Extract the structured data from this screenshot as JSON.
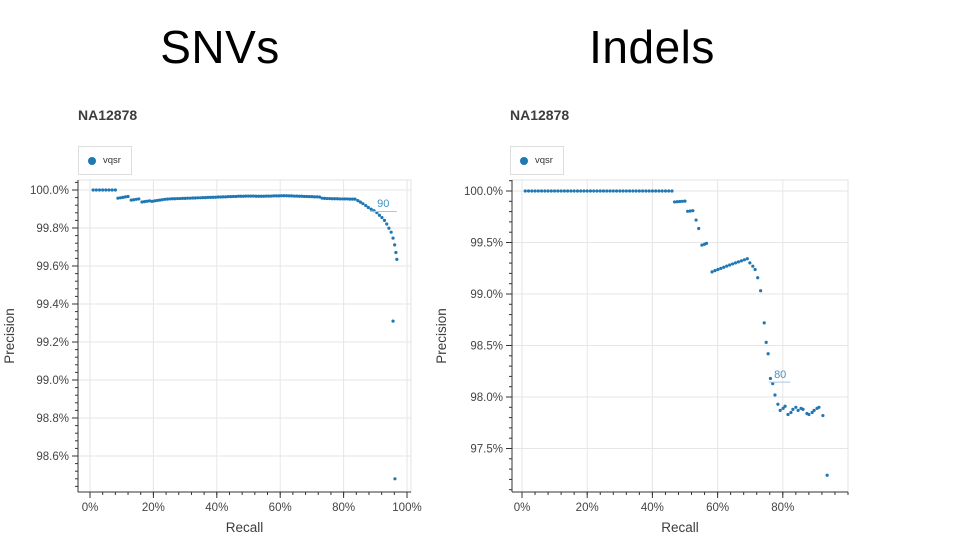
{
  "page": {
    "background": "#ffffff"
  },
  "titles": {
    "left": "SNVs",
    "right": "Indels"
  },
  "colors": {
    "dot": "#1f77b4",
    "annotation_text": "#4292c6",
    "annotation_line": "#a8c8e0",
    "grid": "#e6e6e6",
    "plot_border": "#e3e3e3",
    "axis": "#333333",
    "tick_label": "#444444",
    "axis_title": "#3d3d3d",
    "subtitle": "#3d3d3d"
  },
  "chart_data": [
    {
      "type": "scatter",
      "title": "SNVs",
      "subtitle": "NA12878",
      "legend": [
        "vqsr"
      ],
      "xlabel": "Recall",
      "ylabel": "Precision",
      "xlim": [
        0,
        101.5
      ],
      "ylim": [
        98.41,
        100.05
      ],
      "grid": true,
      "legend_position": "top-left",
      "xticks": {
        "values": [
          0,
          20,
          40,
          60,
          80,
          100
        ],
        "labels": [
          "0%",
          "20%",
          "40%",
          "60%",
          "80%",
          "100%"
        ],
        "minor_step": 4
      },
      "yticks": {
        "values": [
          98.6,
          98.8,
          99.0,
          99.2,
          99.4,
          99.6,
          99.8,
          100.0
        ],
        "labels": [
          "98.6%",
          "98.8%",
          "99.0%",
          "99.2%",
          "99.4%",
          "99.6%",
          "99.8%",
          "100.0%"
        ],
        "minor_step": 0.04
      },
      "annotation": {
        "text": "90",
        "line_y": 99.887,
        "line_x1": 88.3,
        "line_x2": 96.8,
        "text_x": 92.5,
        "text_y": 99.9
      },
      "series": [
        {
          "name": "vqsr",
          "points": [
            [
              1,
              100
            ],
            [
              2,
              100
            ],
            [
              3,
              100
            ],
            [
              4,
              100
            ],
            [
              5,
              100
            ],
            [
              6,
              100
            ],
            [
              7,
              100
            ],
            [
              8,
              100
            ],
            [
              8.8,
              99.957
            ],
            [
              9.6,
              99.959
            ],
            [
              10.4,
              99.961
            ],
            [
              11.2,
              99.964
            ],
            [
              12,
              99.966
            ],
            [
              13,
              99.947
            ],
            [
              13.8,
              99.949
            ],
            [
              14.6,
              99.951
            ],
            [
              15.4,
              99.953
            ],
            [
              16.4,
              99.937
            ],
            [
              17.2,
              99.939
            ],
            [
              18,
              99.941
            ],
            [
              18.8,
              99.943
            ],
            [
              19.6,
              99.94
            ],
            [
              20.4,
              99.943
            ],
            [
              21.2,
              99.945
            ],
            [
              22,
              99.947
            ],
            [
              22.8,
              99.949
            ],
            [
              23.6,
              99.951
            ],
            [
              24.4,
              99.952
            ],
            [
              25.2,
              99.953
            ],
            [
              26,
              99.954
            ],
            [
              26.8,
              99.954
            ],
            [
              27.6,
              99.955
            ],
            [
              28.4,
              99.955
            ],
            [
              29.2,
              99.956
            ],
            [
              30,
              99.956
            ],
            [
              30.8,
              99.957
            ],
            [
              31.6,
              99.957
            ],
            [
              32.4,
              99.958
            ],
            [
              33.2,
              99.958
            ],
            [
              34,
              99.959
            ],
            [
              34.8,
              99.959
            ],
            [
              35.6,
              99.96
            ],
            [
              36.4,
              99.96
            ],
            [
              37.2,
              99.961
            ],
            [
              38,
              99.961
            ],
            [
              38.8,
              99.962
            ],
            [
              39.6,
              99.962
            ],
            [
              40.4,
              99.963
            ],
            [
              41.2,
              99.963
            ],
            [
              42,
              99.964
            ],
            [
              42.8,
              99.964
            ],
            [
              43.6,
              99.965
            ],
            [
              44.4,
              99.965
            ],
            [
              45.2,
              99.966
            ],
            [
              46,
              99.966
            ],
            [
              46.8,
              99.967
            ],
            [
              47.6,
              99.967
            ],
            [
              48.4,
              99.967
            ],
            [
              49.2,
              99.968
            ],
            [
              50,
              99.968
            ],
            [
              50.8,
              99.968
            ],
            [
              51.6,
              99.968
            ],
            [
              52.4,
              99.967
            ],
            [
              53.2,
              99.967
            ],
            [
              54,
              99.967
            ],
            [
              54.8,
              99.967
            ],
            [
              55.6,
              99.968
            ],
            [
              56.4,
              99.968
            ],
            [
              57.2,
              99.968
            ],
            [
              58,
              99.969
            ],
            [
              58.8,
              99.969
            ],
            [
              59.6,
              99.969
            ],
            [
              60.4,
              99.97
            ],
            [
              61.2,
              99.97
            ],
            [
              62,
              99.97
            ],
            [
              62.8,
              99.969
            ],
            [
              63.6,
              99.969
            ],
            [
              64.4,
              99.968
            ],
            [
              65.2,
              99.968
            ],
            [
              66,
              99.967
            ],
            [
              66.8,
              99.967
            ],
            [
              67.6,
              99.966
            ],
            [
              68.4,
              99.966
            ],
            [
              69.2,
              99.965
            ],
            [
              70,
              99.965
            ],
            [
              70.8,
              99.964
            ],
            [
              71.6,
              99.964
            ],
            [
              72.4,
              99.963
            ],
            [
              73.2,
              99.957
            ],
            [
              74,
              99.956
            ],
            [
              74.8,
              99.955
            ],
            [
              75.6,
              99.955
            ],
            [
              76.4,
              99.954
            ],
            [
              77.2,
              99.954
            ],
            [
              78,
              99.954
            ],
            [
              78.8,
              99.953
            ],
            [
              79.6,
              99.953
            ],
            [
              80.4,
              99.953
            ],
            [
              81.2,
              99.953
            ],
            [
              82,
              99.952
            ],
            [
              82.8,
              99.952
            ],
            [
              83.6,
              99.952
            ],
            [
              84.5,
              99.944
            ],
            [
              85.3,
              99.936
            ],
            [
              86.1,
              99.928
            ],
            [
              87,
              99.918
            ],
            [
              87.8,
              99.908
            ],
            [
              88.7,
              99.899
            ],
            [
              89.6,
              99.891
            ],
            [
              90.5,
              99.881
            ],
            [
              91.3,
              99.867
            ],
            [
              92.1,
              99.855
            ],
            [
              92.9,
              99.84
            ],
            [
              93.6,
              99.821
            ],
            [
              94.3,
              99.799
            ],
            [
              95,
              99.778
            ],
            [
              95.6,
              99.747
            ],
            [
              96.1,
              99.711
            ],
            [
              96.5,
              99.671
            ],
            [
              96.8,
              99.635
            ],
            [
              95.6,
              99.31
            ],
            [
              96.2,
              98.48
            ]
          ]
        }
      ]
    },
    {
      "type": "scatter",
      "title": "Indels",
      "subtitle": "NA12878",
      "legend": [
        "vqsr"
      ],
      "xlabel": "Recall",
      "ylabel": "Precision",
      "xlim": [
        0,
        100
      ],
      "ylim": [
        97.08,
        100.1
      ],
      "grid": true,
      "legend_position": "top-left",
      "xticks": {
        "values": [
          0,
          20,
          40,
          60,
          80
        ],
        "labels": [
          "0%",
          "20%",
          "40%",
          "60%",
          "80%"
        ],
        "minor_step": 4
      },
      "yticks": {
        "values": [
          97.5,
          98.0,
          98.5,
          99.0,
          99.5,
          100.0
        ],
        "labels": [
          "97.5%",
          "98.0%",
          "98.5%",
          "99.0%",
          "99.5%",
          "100.0%"
        ],
        "minor_step": 0.1
      },
      "annotation": {
        "text": "80",
        "line_y": 98.145,
        "line_x1": 75.7,
        "line_x2": 82.3,
        "text_x": 79.2,
        "text_y": 98.165
      },
      "series": [
        {
          "name": "vqsr",
          "points": [
            [
              1,
              100
            ],
            [
              2,
              100
            ],
            [
              3,
              100
            ],
            [
              4,
              100
            ],
            [
              5,
              100
            ],
            [
              6,
              100
            ],
            [
              7,
              100
            ],
            [
              8,
              100
            ],
            [
              9,
              100
            ],
            [
              10,
              100
            ],
            [
              11,
              100
            ],
            [
              12,
              100
            ],
            [
              13,
              100
            ],
            [
              14,
              100
            ],
            [
              15,
              100
            ],
            [
              16,
              100
            ],
            [
              17,
              100
            ],
            [
              18,
              100
            ],
            [
              19,
              100
            ],
            [
              20,
              100
            ],
            [
              21,
              100
            ],
            [
              22,
              100
            ],
            [
              23,
              100
            ],
            [
              24,
              100
            ],
            [
              25,
              100
            ],
            [
              26,
              100
            ],
            [
              27,
              100
            ],
            [
              28,
              100
            ],
            [
              29,
              100
            ],
            [
              30,
              100
            ],
            [
              31,
              100
            ],
            [
              32,
              100
            ],
            [
              33,
              100
            ],
            [
              34,
              100
            ],
            [
              35,
              100
            ],
            [
              36,
              100
            ],
            [
              37,
              100
            ],
            [
              38,
              100
            ],
            [
              39,
              100
            ],
            [
              40,
              100
            ],
            [
              41,
              100
            ],
            [
              42,
              100
            ],
            [
              43,
              100
            ],
            [
              44,
              100
            ],
            [
              45,
              100
            ],
            [
              46,
              100
            ],
            [
              46.8,
              99.894
            ],
            [
              47.6,
              99.896
            ],
            [
              48.4,
              99.898
            ],
            [
              49.2,
              99.9
            ],
            [
              50,
              99.902
            ],
            [
              50.8,
              99.803
            ],
            [
              51.6,
              99.806
            ],
            [
              52.4,
              99.809
            ],
            [
              53.4,
              99.718
            ],
            [
              54.2,
              99.636
            ],
            [
              55.2,
              99.475
            ],
            [
              56,
              99.483
            ],
            [
              56.6,
              99.492
            ],
            [
              58.3,
              99.215
            ],
            [
              59.2,
              99.227
            ],
            [
              60.1,
              99.238
            ],
            [
              61,
              99.249
            ],
            [
              61.9,
              99.26
            ],
            [
              62.8,
              99.271
            ],
            [
              63.7,
              99.282
            ],
            [
              64.6,
              99.292
            ],
            [
              65.5,
              99.302
            ],
            [
              66.4,
              99.312
            ],
            [
              67.3,
              99.322
            ],
            [
              68.2,
              99.332
            ],
            [
              69.1,
              99.342
            ],
            [
              69.9,
              99.302
            ],
            [
              70.8,
              99.27
            ],
            [
              71.5,
              99.238
            ],
            [
              72.3,
              99.158
            ],
            [
              73.2,
              99.032
            ],
            [
              74.3,
              98.72
            ],
            [
              74.9,
              98.53
            ],
            [
              75.5,
              98.42
            ],
            [
              76.2,
              98.18
            ],
            [
              76.9,
              98.13
            ],
            [
              77.6,
              98.02
            ],
            [
              78.5,
              97.93
            ],
            [
              79.2,
              97.87
            ],
            [
              80.1,
              97.89
            ],
            [
              80.7,
              97.91
            ],
            [
              81.6,
              97.83
            ],
            [
              82.5,
              97.85
            ],
            [
              83.1,
              97.88
            ],
            [
              84,
              97.9
            ],
            [
              84.7,
              97.87
            ],
            [
              85.6,
              97.89
            ],
            [
              86.2,
              97.88
            ],
            [
              87.4,
              97.84
            ],
            [
              88,
              97.83
            ],
            [
              89,
              97.85
            ],
            [
              89.6,
              97.87
            ],
            [
              90.5,
              97.89
            ],
            [
              91.1,
              97.9
            ],
            [
              92.3,
              97.82
            ],
            [
              93.6,
              97.24
            ]
          ]
        }
      ]
    }
  ]
}
